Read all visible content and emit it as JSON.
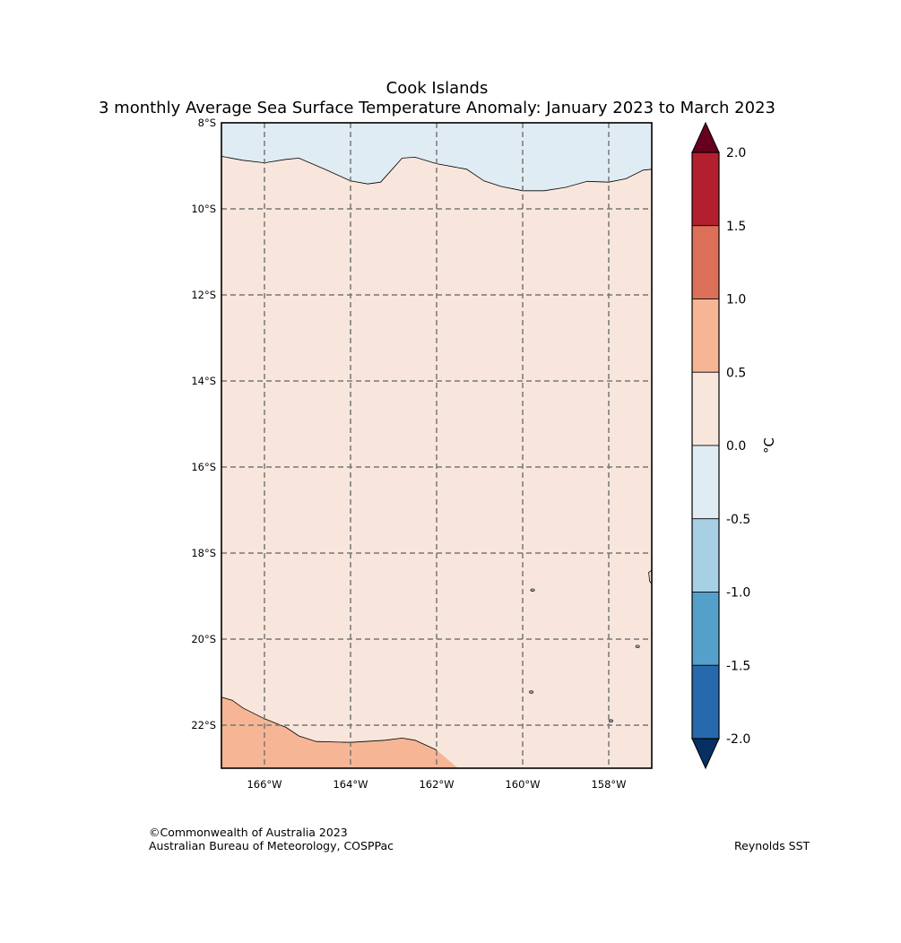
{
  "title": {
    "line1": "Cook Islands",
    "line2": "3 monthly Average Sea Surface Temperature Anomaly: January 2023 to March 2023"
  },
  "map": {
    "lat_range": [
      -23,
      -8
    ],
    "lon_range": [
      -167,
      -157
    ],
    "lat_ticks": [
      {
        "value": -8,
        "label": "8°S"
      },
      {
        "value": -10,
        "label": "10°S"
      },
      {
        "value": -12,
        "label": "12°S"
      },
      {
        "value": -14,
        "label": "14°S"
      },
      {
        "value": -16,
        "label": "16°S"
      },
      {
        "value": -18,
        "label": "18°S"
      },
      {
        "value": -20,
        "label": "20°S"
      },
      {
        "value": -22,
        "label": "22°S"
      }
    ],
    "lon_ticks": [
      {
        "value": -166,
        "label": "166°W"
      },
      {
        "value": -164,
        "label": "164°W"
      },
      {
        "value": -162,
        "label": "162°W"
      },
      {
        "value": -160,
        "label": "160°W"
      },
      {
        "value": -158,
        "label": "158°W"
      }
    ],
    "gridlines": "dashed",
    "background_class_color": "#f8e6dc",
    "regions": [
      {
        "name": "north-cool-region",
        "color": "#e0ecf3",
        "boundary": [
          [
            -167,
            -8.78
          ],
          [
            -166.5,
            -8.87
          ],
          [
            -166,
            -8.93
          ],
          [
            -165.5,
            -8.85
          ],
          [
            -165.2,
            -8.82
          ],
          [
            -164.6,
            -9.08
          ],
          [
            -164,
            -9.35
          ],
          [
            -163.6,
            -9.42
          ],
          [
            -163.3,
            -9.38
          ],
          [
            -163.05,
            -9.1
          ],
          [
            -162.8,
            -8.82
          ],
          [
            -162.5,
            -8.8
          ],
          [
            -162,
            -8.95
          ],
          [
            -161.3,
            -9.08
          ],
          [
            -160.9,
            -9.35
          ],
          [
            -160.5,
            -9.48
          ],
          [
            -160,
            -9.58
          ],
          [
            -159.5,
            -9.58
          ],
          [
            -159,
            -9.5
          ],
          [
            -158.5,
            -9.36
          ],
          [
            -158,
            -9.38
          ],
          [
            -157.6,
            -9.3
          ],
          [
            -157.2,
            -9.1
          ],
          [
            -157,
            -9.08
          ],
          [
            -157,
            -8
          ],
          [
            -167,
            -8
          ]
        ]
      },
      {
        "name": "south-warm-region",
        "color": "#f6b696",
        "boundary": [
          [
            -167,
            -21.35
          ],
          [
            -166.75,
            -21.42
          ],
          [
            -166.5,
            -21.6
          ],
          [
            -166,
            -21.85
          ],
          [
            -165.5,
            -22.05
          ],
          [
            -165.2,
            -22.25
          ],
          [
            -164.8,
            -22.38
          ],
          [
            -164,
            -22.4
          ],
          [
            -163.2,
            -22.35
          ],
          [
            -162.8,
            -22.3
          ],
          [
            -162.5,
            -22.35
          ],
          [
            -162,
            -22.58
          ],
          [
            -161.5,
            -23
          ],
          [
            -167,
            -23
          ]
        ]
      }
    ],
    "islands": [
      {
        "lon": -159.77,
        "lat": -18.86
      },
      {
        "lon": -159.8,
        "lat": -21.23
      },
      {
        "lon": -157.95,
        "lat": -21.9
      },
      {
        "lon": -157.33,
        "lat": -20.17
      }
    ],
    "edge_island": [
      [
        -157,
        -18.4
      ],
      [
        -157.07,
        -18.45
      ],
      [
        -157.05,
        -18.65
      ],
      [
        -157,
        -18.72
      ]
    ]
  },
  "colorbar": {
    "unit": "°C",
    "levels": [
      {
        "label": "2.0",
        "value": 2.0
      },
      {
        "label": "1.5",
        "value": 1.5
      },
      {
        "label": "1.0",
        "value": 1.0
      },
      {
        "label": "0.5",
        "value": 0.5
      },
      {
        "label": "0.0",
        "value": 0.0
      },
      {
        "label": "-0.5",
        "value": -0.5
      },
      {
        "label": "-1.0",
        "value": -1.0
      },
      {
        "label": "-1.5",
        "value": -1.5
      },
      {
        "label": "-2.0",
        "value": -2.0
      }
    ],
    "colors": [
      "#b31f2e",
      "#dc6f58",
      "#f6b696",
      "#f8e6dc",
      "#e0ecf3",
      "#a8d0e4",
      "#55a0cb",
      "#2769ad"
    ],
    "extend_high_color": "#67001f",
    "extend_low_color": "#053061"
  },
  "credits": {
    "copyright": "©Commonwealth of Australia 2023",
    "org": "Australian Bureau of Meteorology, COSPPac",
    "source": "Reynolds SST"
  }
}
